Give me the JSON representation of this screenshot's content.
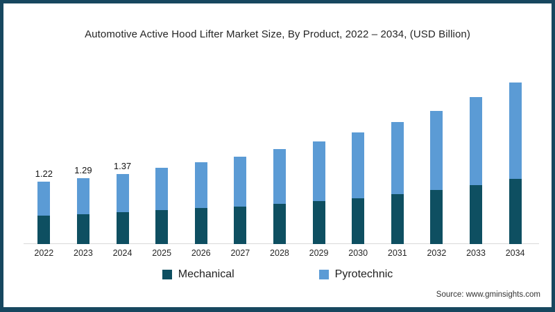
{
  "title": "Automotive Active Hood Lifter Market Size, By Product, 2022 – 2034, (USD Billion)",
  "source": "Source: www.gminsights.com",
  "frame": {
    "border_color": "#17475f",
    "background": "#ffffff"
  },
  "axis_line_color": "#d9d9d9",
  "legend": {
    "position": "bottom",
    "items": [
      {
        "label": "Mechanical",
        "color": "#0e4f61"
      },
      {
        "label": "Pyrotechnic",
        "color": "#5b9bd5"
      }
    ]
  },
  "chart_data": {
    "type": "bar",
    "stacked": true,
    "title": "Automotive Active Hood Lifter Market Size, By Product, 2022 – 2034, (USD Billion)",
    "xlabel": "",
    "ylabel": "USD Billion",
    "ylim": [
      0,
      3.5
    ],
    "grid": false,
    "legend_position": "bottom",
    "categories": [
      "2022",
      "2023",
      "2024",
      "2025",
      "2026",
      "2027",
      "2028",
      "2029",
      "2030",
      "2031",
      "2032",
      "2033",
      "2034"
    ],
    "series": [
      {
        "name": "Mechanical",
        "color": "#0e4f61",
        "values": [
          0.55,
          0.58,
          0.62,
          0.66,
          0.7,
          0.73,
          0.78,
          0.84,
          0.9,
          0.98,
          1.06,
          1.15,
          1.27
        ]
      },
      {
        "name": "Pyrotechnic",
        "color": "#5b9bd5",
        "values": [
          0.67,
          0.71,
          0.75,
          0.82,
          0.89,
          0.98,
          1.07,
          1.17,
          1.29,
          1.41,
          1.55,
          1.72,
          1.89
        ]
      }
    ],
    "totals": [
      1.22,
      1.29,
      1.37,
      1.48,
      1.59,
      1.71,
      1.85,
      2.01,
      2.19,
      2.39,
      2.61,
      2.87,
      3.16
    ],
    "data_labels": [
      "1.22",
      "1.29",
      "1.37",
      "",
      "",
      "",
      "",
      "",
      "",
      "",
      "",
      "",
      ""
    ]
  }
}
